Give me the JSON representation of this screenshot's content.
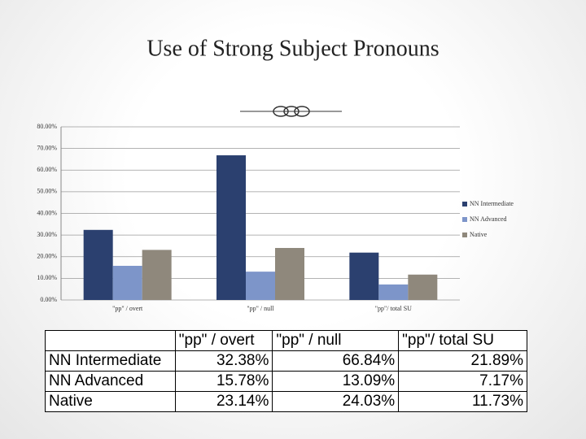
{
  "chart_data": {
    "type": "bar",
    "title": "Use of Strong Subject Pronouns",
    "categories": [
      "\"pp\" / overt",
      "\"pp\" / null",
      "\"pp\"/ total SU"
    ],
    "series": [
      {
        "name": "NN Intermediate",
        "color": "#2b406f",
        "values": [
          32.38,
          66.84,
          21.89
        ]
      },
      {
        "name": "NN Advanced",
        "color": "#7d95c9",
        "values": [
          15.78,
          13.09,
          7.17
        ]
      },
      {
        "name": "Native",
        "color": "#8f887c",
        "values": [
          23.14,
          24.03,
          11.73
        ]
      }
    ],
    "ylim": [
      0,
      80
    ],
    "yticks": [
      {
        "value": 0,
        "label": "0.00%"
      },
      {
        "value": 10,
        "label": "10.00%"
      },
      {
        "value": 20,
        "label": "20.00%"
      },
      {
        "value": 30,
        "label": "30.00%"
      },
      {
        "value": 40,
        "label": "40.00%"
      },
      {
        "value": 50,
        "label": "50.00%"
      },
      {
        "value": 60,
        "label": "60.00%"
      },
      {
        "value": 70,
        "label": "70.00%"
      },
      {
        "value": 80,
        "label": "80.00%"
      }
    ],
    "grid": true,
    "legend": "right"
  },
  "table": {
    "header": [
      "\"pp\" / overt",
      "\"pp\" / null",
      "\"pp\"/ total SU"
    ],
    "rows": [
      [
        "NN Intermediate",
        "32.38%",
        "66.84%",
        "21.89%"
      ],
      [
        "NN Advanced",
        "15.78%",
        "13.09%",
        "7.17%"
      ],
      [
        "Native",
        "23.14%",
        "24.03%",
        "11.73%"
      ]
    ]
  }
}
